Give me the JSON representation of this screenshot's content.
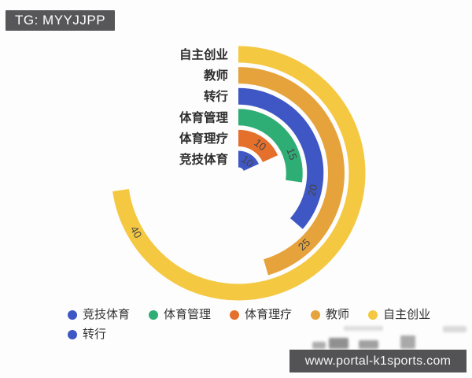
{
  "badge": {
    "text": "TG: MYYJJPP"
  },
  "watermark": {
    "url_text": "www.portal-k1sports.com"
  },
  "chart_data": {
    "type": "radial-bar",
    "title": "",
    "series": [
      {
        "name": "竞技体育",
        "value": 10,
        "color": "#3E57C5"
      },
      {
        "name": "体育管理",
        "value": 15,
        "color": "#2EAD74"
      },
      {
        "name": "体育理疗",
        "value": 10,
        "color": "#E4702C"
      },
      {
        "name": "教师",
        "value": 25,
        "color": "#E6A33C"
      },
      {
        "name": "自主创业",
        "value": 40,
        "color": "#F5C842"
      },
      {
        "name": "转行",
        "value": 20,
        "color": "#3E57C5"
      }
    ],
    "rings_inner_to_outer": [
      "竞技体育",
      "体育理疗",
      "体育管理",
      "转行",
      "教师",
      "自主创业"
    ],
    "value_labels": [
      10,
      10,
      15,
      20,
      25,
      40
    ],
    "angle_start": "top",
    "sweep_direction": "clockwise",
    "angle_full_circle_value": 55,
    "grid": false,
    "legend_position": "bottom-left",
    "label_color": "#2d2d2d",
    "value_label_color": "#454545"
  }
}
